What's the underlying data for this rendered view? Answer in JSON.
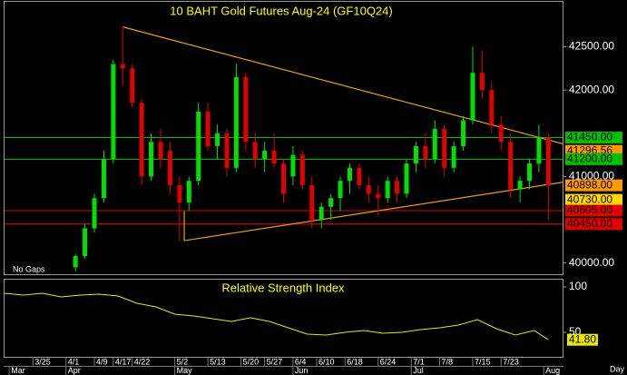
{
  "chart_data": [
    {
      "type": "candlestick",
      "title": "10 BAHT Gold Futures Aug-24 (GF10Q24)",
      "note": "No Gaps",
      "x": [
        15,
        17,
        19,
        21,
        23,
        25,
        27,
        29,
        31,
        33,
        35,
        37,
        39,
        41,
        43,
        45,
        47,
        49,
        51,
        53,
        55,
        57,
        59,
        61,
        63,
        65,
        67,
        69,
        71,
        73,
        75,
        77,
        79,
        81,
        83,
        85,
        87,
        89,
        91,
        93,
        95,
        97,
        99,
        101,
        103,
        105,
        107,
        109,
        111,
        113,
        115
      ],
      "open": [
        39950,
        40080,
        40400,
        40750,
        41200,
        42300,
        42250,
        41850,
        41000,
        41400,
        41300,
        40900,
        40700,
        40950,
        41750,
        41350,
        41500,
        41100,
        42150,
        41400,
        41200,
        41300,
        41150,
        41000,
        41250,
        40900,
        40500,
        40650,
        40750,
        40950,
        41100,
        40900,
        40800,
        40750,
        40950,
        40800,
        41150,
        41350,
        41200,
        41550,
        41100,
        41350,
        41650,
        42200,
        42000,
        41600,
        41400,
        40850,
        40950,
        41150,
        41450
      ],
      "high": [
        40100,
        40450,
        40800,
        41300,
        42350,
        42730,
        42300,
        41900,
        41500,
        41550,
        41400,
        41000,
        41000,
        41850,
        41850,
        41600,
        41550,
        42300,
        42200,
        41500,
        41400,
        41500,
        41200,
        41350,
        41300,
        41000,
        40700,
        40800,
        41000,
        41150,
        41150,
        41000,
        40900,
        41000,
        41000,
        41200,
        41400,
        41500,
        41650,
        41600,
        41400,
        41700,
        42500,
        42450,
        42100,
        41700,
        41500,
        41000,
        41200,
        41600,
        41500
      ],
      "low": [
        39900,
        40050,
        40350,
        40700,
        41150,
        42050,
        41800,
        40900,
        40950,
        41100,
        40800,
        40250,
        40600,
        40900,
        41300,
        41200,
        41000,
        41050,
        41300,
        41100,
        41050,
        41100,
        40700,
        40900,
        40850,
        40400,
        40400,
        40500,
        40600,
        40800,
        40850,
        40700,
        40550,
        40700,
        40700,
        40750,
        41050,
        41100,
        41150,
        41000,
        41050,
        41300,
        41600,
        41900,
        41500,
        41300,
        40750,
        40700,
        40850,
        41050,
        40500
      ],
      "close": [
        40080,
        40400,
        40750,
        41200,
        42300,
        42250,
        41850,
        41000,
        41400,
        41200,
        40900,
        40700,
        40950,
        41750,
        41350,
        41500,
        41100,
        42150,
        41400,
        41200,
        41300,
        41150,
        40800,
        41250,
        40900,
        40500,
        40650,
        40750,
        40950,
        41100,
        40900,
        40800,
        40750,
        40950,
        40800,
        41150,
        41350,
        41200,
        41550,
        41100,
        41350,
        41650,
        42200,
        42000,
        41600,
        41400,
        40850,
        40950,
        41150,
        41450,
        40898
      ],
      "up_color": "#00e000",
      "down_color": "#e00000",
      "xlim": [
        0,
        118
      ],
      "ylim": [
        39870,
        43020
      ],
      "yticks": [
        {
          "value": 42500,
          "label": "42500.00"
        },
        {
          "value": 42000,
          "label": "42000.00"
        },
        {
          "value": 41000,
          "label": "41000.00"
        },
        {
          "value": 40000,
          "label": "40000.00"
        }
      ],
      "levels": [
        {
          "value": 41450,
          "label": "41450.00",
          "color": "#00c000",
          "line": true
        },
        {
          "value": 41296.56,
          "label": "41296.56",
          "color": "#ff9900",
          "line": false
        },
        {
          "value": 41200,
          "label": "41200.00",
          "color": "#00c000",
          "line": true
        },
        {
          "value": 40898,
          "label": "40898.00",
          "color": "#ff9900",
          "line": false
        },
        {
          "value": 40730,
          "label": "40730.00",
          "color": "#ffd700",
          "line": false
        },
        {
          "value": 40605,
          "label": "40605.00",
          "color": "#e00000",
          "line": true
        },
        {
          "value": 40450,
          "label": "40450.00",
          "color": "#e00000",
          "line": true
        }
      ],
      "trendlines": [
        {
          "color": "#e8a000",
          "points": [
            [
              25,
              42730
            ],
            [
              118,
              41379
            ]
          ]
        },
        {
          "color": "#e8a000",
          "points": [
            [
              38,
              40258
            ],
            [
              118,
              40933
            ]
          ]
        },
        {
          "color": "#e8a000",
          "points": [
            [
              38,
              40258
            ],
            [
              38,
              40600
            ]
          ]
        }
      ]
    },
    {
      "type": "line",
      "title": "Relative Strength Index",
      "x": [
        0,
        4,
        8,
        12,
        16,
        20,
        24,
        28,
        32,
        36,
        40,
        44,
        48,
        52,
        56,
        60,
        64,
        68,
        72,
        76,
        80,
        84,
        88,
        92,
        96,
        100,
        104,
        108,
        112,
        115
      ],
      "values": [
        93,
        91,
        93,
        89,
        91,
        92,
        90,
        82,
        78,
        70,
        68,
        65,
        62,
        66,
        62,
        55,
        48,
        47,
        50,
        52,
        49,
        50,
        53,
        55,
        58,
        64,
        54,
        47,
        52,
        41.8
      ],
      "color": "#e8e800",
      "xlim": [
        0,
        118
      ],
      "ylim": [
        23,
        108
      ],
      "yticks": [
        100,
        50
      ],
      "last": {
        "value": 41.8,
        "label": "41.80"
      },
      "xticks": [
        {
          "value": 6,
          "label": "3/25"
        },
        {
          "value": 13,
          "label": "4/1"
        },
        {
          "value": 19,
          "label": "4/9"
        },
        {
          "value": 23,
          "label": "4/17"
        },
        {
          "value": 27,
          "label": "4/22"
        },
        {
          "value": 36,
          "label": "5/2"
        },
        {
          "value": 43,
          "label": "5/13"
        },
        {
          "value": 50,
          "label": "5/20"
        },
        {
          "value": 55,
          "label": "5/27"
        },
        {
          "value": 61,
          "label": "6/4"
        },
        {
          "value": 66,
          "label": "6/10"
        },
        {
          "value": 72,
          "label": "6/18"
        },
        {
          "value": 79,
          "label": "6/24"
        },
        {
          "value": 86,
          "label": "7/1"
        },
        {
          "value": 92,
          "label": "7/8"
        },
        {
          "value": 99,
          "label": "7/15"
        },
        {
          "value": 105,
          "label": "7/23"
        }
      ],
      "month_ticks": [
        {
          "value": 1,
          "label": "Mar"
        },
        {
          "value": 13,
          "label": "Apr"
        },
        {
          "value": 36,
          "label": "May"
        },
        {
          "value": 61,
          "label": "Jun"
        },
        {
          "value": 86,
          "label": "Jul"
        },
        {
          "value": 114,
          "label": "Aug"
        }
      ],
      "xlabel": "Day"
    }
  ]
}
